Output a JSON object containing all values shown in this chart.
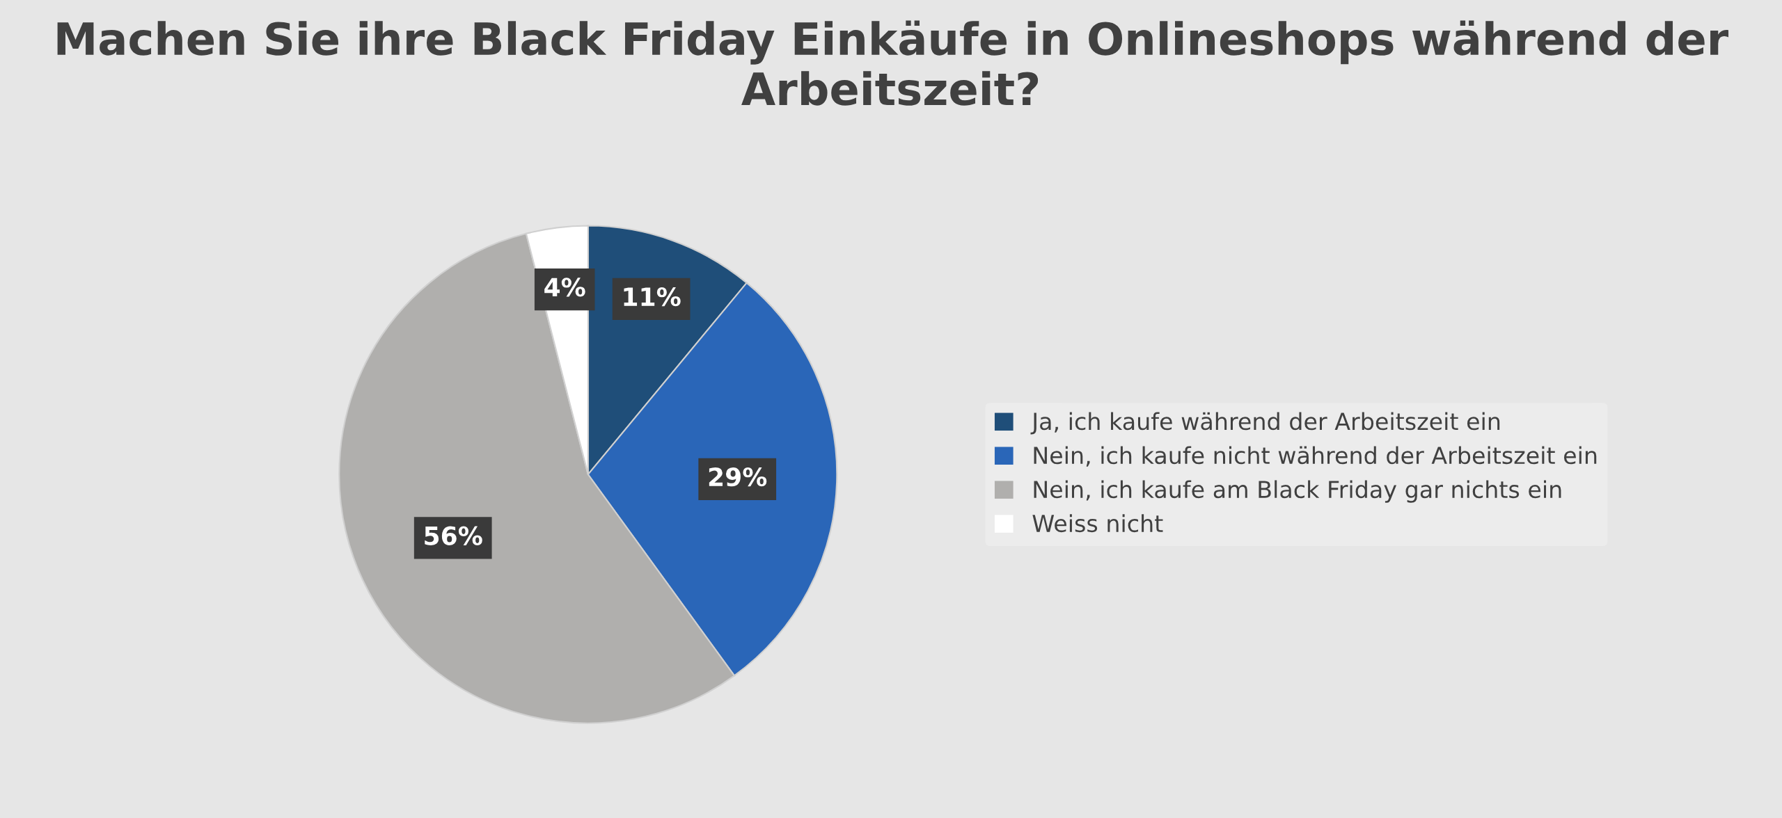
{
  "chart_data": {
    "type": "pie",
    "title": "Machen Sie ihre Black Friday Einkäufe in Onlineshops während der Arbeitszeit?",
    "categories": [
      "Ja, ich kaufe während der Arbeitszeit ein",
      "Nein, ich kaufe nicht während der Arbeitszeit ein",
      "Nein, ich kaufe am Black Friday gar nichts ein",
      "Weiss nicht"
    ],
    "values": [
      11,
      29,
      56,
      4
    ],
    "value_labels": [
      "11%",
      "29%",
      "56%",
      "4%"
    ],
    "colors": [
      "#1f4e79",
      "#2a66b8",
      "#b0afad",
      "#ffffff"
    ],
    "legend": "right"
  }
}
